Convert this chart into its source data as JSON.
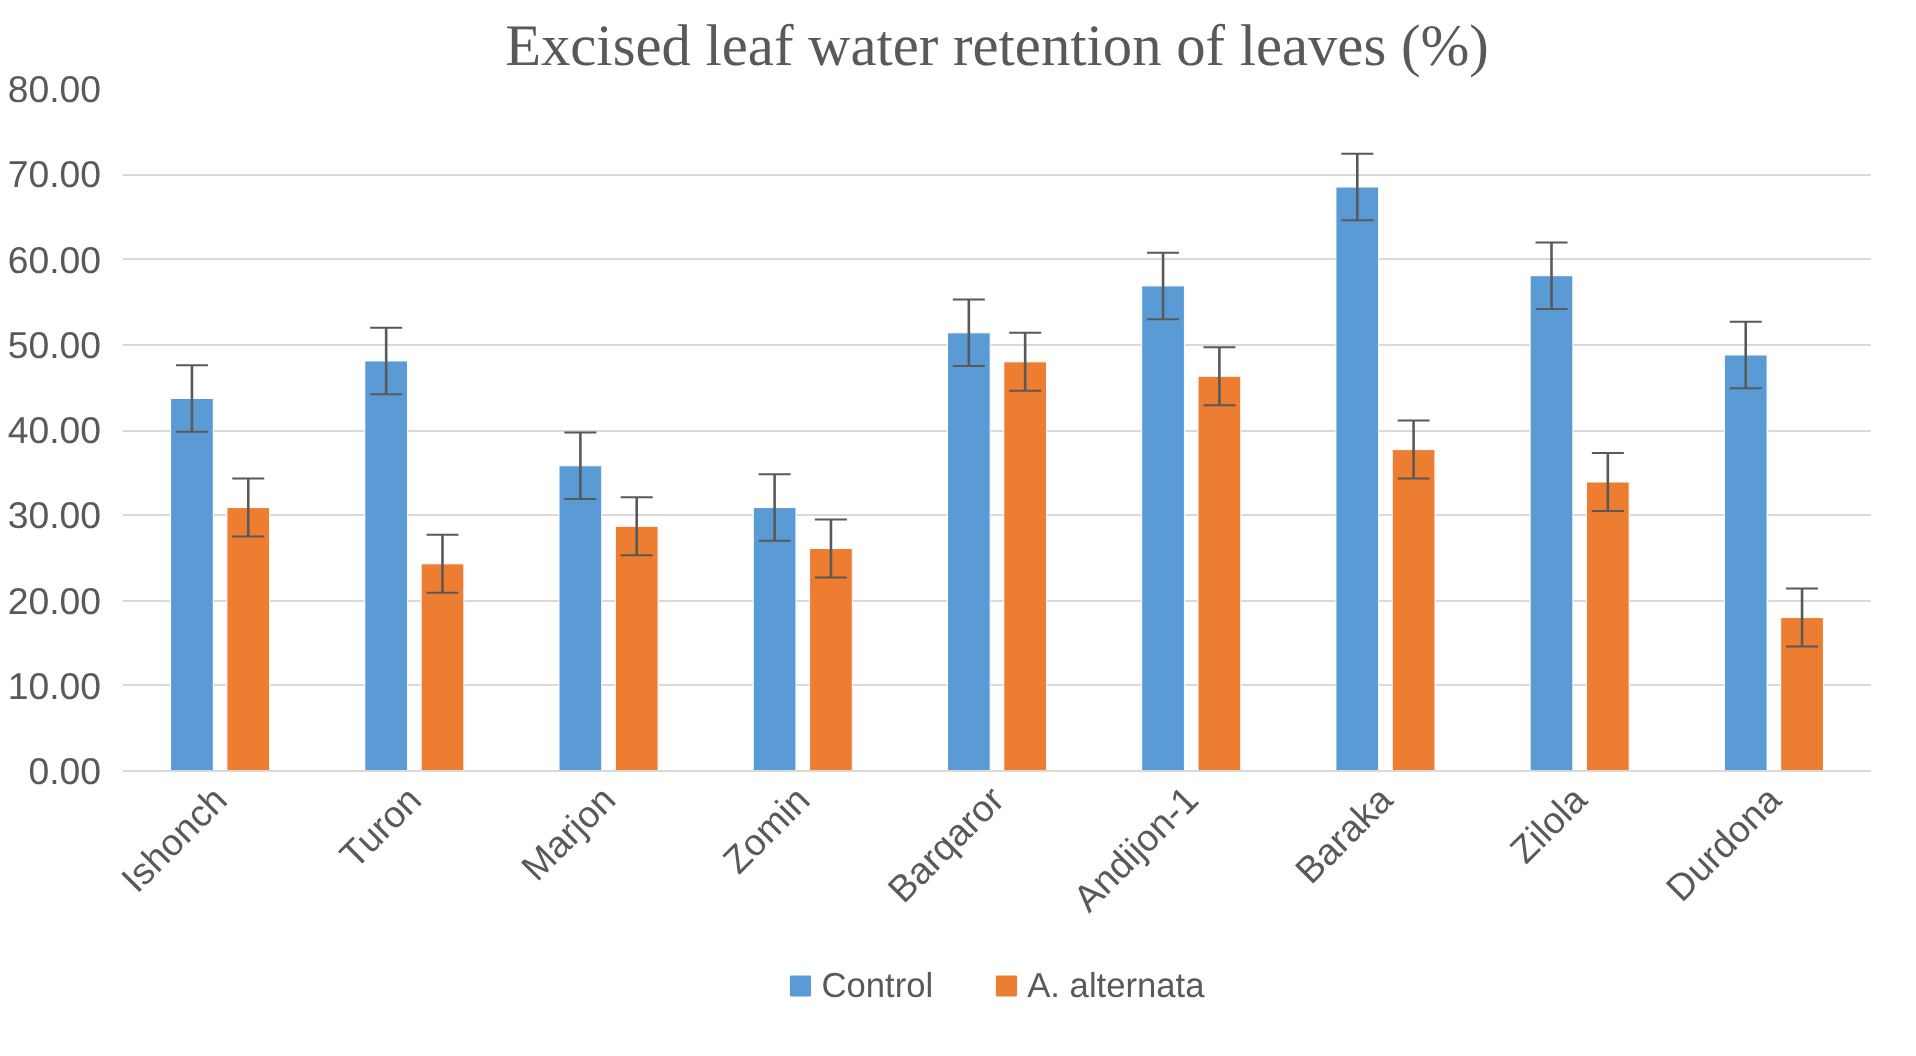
{
  "chart_data": {
    "type": "bar",
    "title": "Excised leaf water retention of leaves (%)",
    "categories": [
      "Ishonch",
      "Turon",
      "Marjon",
      "Zomin",
      "Barqaror",
      "Andijon-1",
      "Baraka",
      "Zilola",
      "Durdona"
    ],
    "series": [
      {
        "name": "Control",
        "color": "#5b9bd5",
        "values": [
          43.7,
          48.1,
          35.8,
          30.9,
          51.4,
          56.9,
          68.5,
          58.1,
          48.8
        ],
        "errors": [
          3.9,
          3.9,
          3.9,
          3.9,
          3.9,
          3.9,
          3.9,
          3.9,
          3.9
        ]
      },
      {
        "name": "A. alternata",
        "color": "#ed7d31",
        "values": [
          30.9,
          24.3,
          28.7,
          26.1,
          48.0,
          46.3,
          37.7,
          33.9,
          18.0
        ],
        "errors": [
          3.4,
          3.4,
          3.4,
          3.4,
          3.4,
          3.4,
          3.4,
          3.4,
          3.4
        ]
      }
    ],
    "ylim": [
      0,
      80
    ],
    "yticks": [
      {
        "value": 0,
        "label": "0.00"
      },
      {
        "value": 10,
        "label": "10.00"
      },
      {
        "value": 20,
        "label": "20.00"
      },
      {
        "value": 30,
        "label": "30.00"
      },
      {
        "value": 40,
        "label": "40.00"
      },
      {
        "value": 50,
        "label": "50.00"
      },
      {
        "value": 60,
        "label": "60.00"
      },
      {
        "value": 70,
        "label": "70.00"
      },
      {
        "value": 80,
        "label": "80.00"
      }
    ],
    "grid": "y",
    "legend": "bottom"
  }
}
